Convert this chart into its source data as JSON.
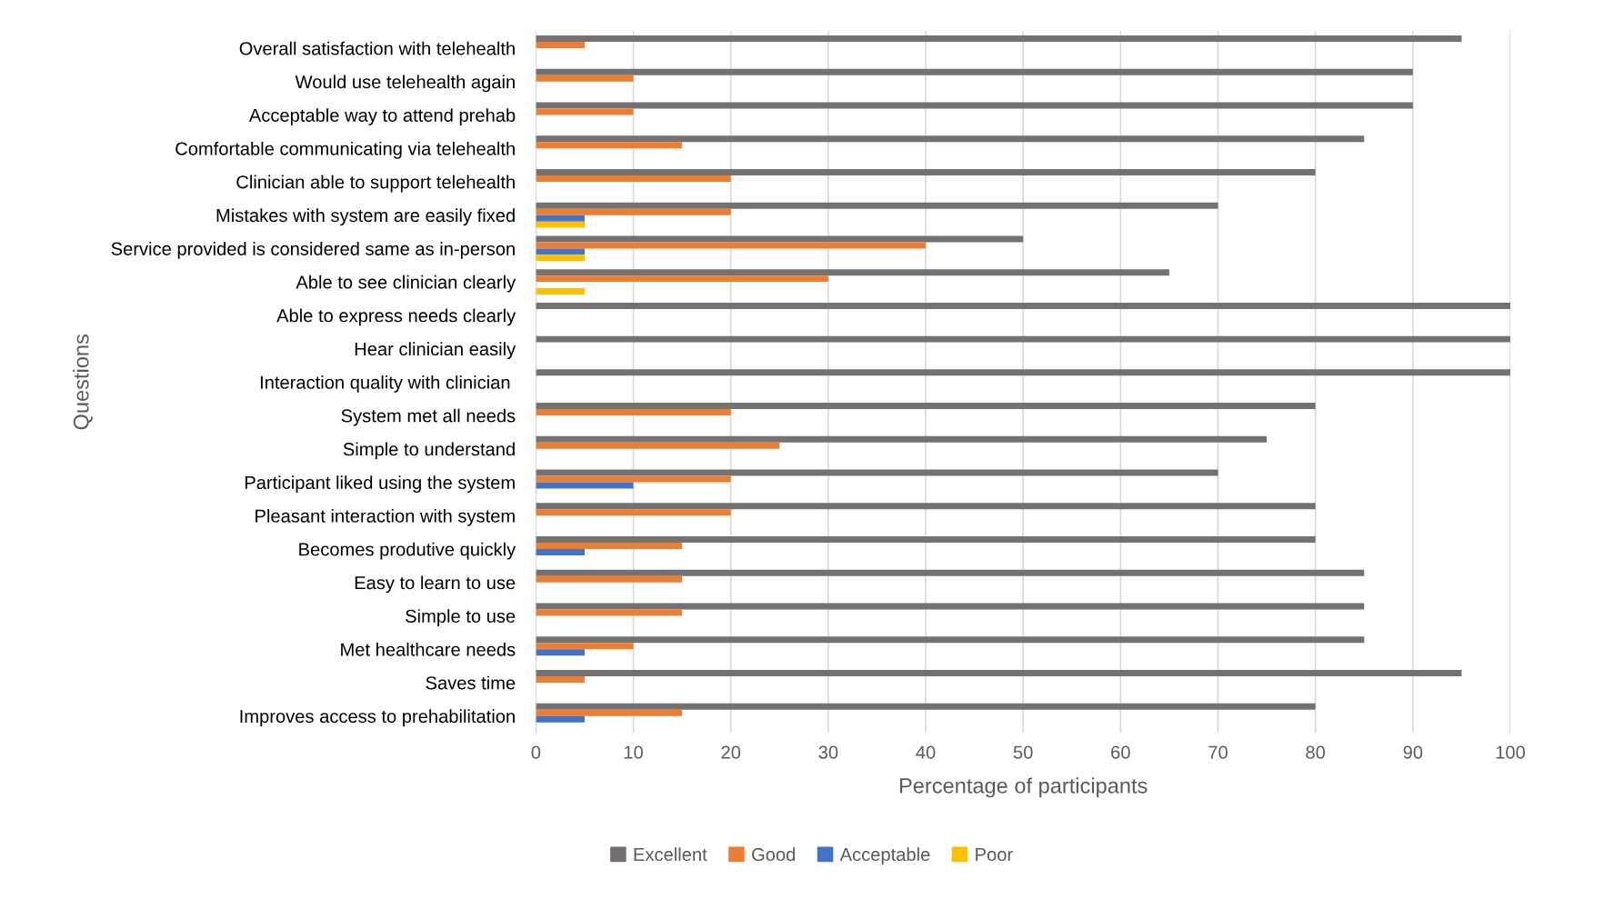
{
  "chart_data": {
    "type": "bar",
    "orientation": "horizontal",
    "xlabel": "Percentage of participants",
    "ylabel": "Questions",
    "categories": [
      "Overall satisfaction with telehealth",
      "Would use telehealth again",
      "Acceptable way to attend prehab",
      "Comfortable communicating via telehealth",
      "Clinician able to support telehealth",
      "Mistakes with system are easily fixed",
      "Service provided is considered same as in-person",
      "Able to see clinician clearly",
      "Able to express needs clearly",
      "Hear clinician easily",
      "Interaction quality with clinician ",
      "System met all needs",
      "Simple to understand",
      "Participant liked using the system",
      "Pleasant interaction with system",
      "Becomes produtive quickly",
      "Easy to learn to use",
      "Simple to use",
      "Met healthcare needs",
      "Saves time",
      "Improves access to prehabilitation"
    ],
    "series": [
      {
        "name": "Excellent",
        "color": "#767171",
        "values": [
          95,
          90,
          90,
          85,
          80,
          70,
          50,
          65,
          100,
          100,
          100,
          80,
          75,
          70,
          80,
          80,
          85,
          85,
          85,
          95,
          80
        ]
      },
      {
        "name": "Good",
        "color": "#ed7d31",
        "values": [
          5,
          10,
          10,
          15,
          20,
          20,
          40,
          30,
          0,
          0,
          0,
          20,
          25,
          20,
          20,
          15,
          15,
          15,
          10,
          5,
          15
        ]
      },
      {
        "name": "Acceptable",
        "color": "#4472c4",
        "values": [
          0,
          0,
          0,
          0,
          0,
          5,
          5,
          0,
          0,
          0,
          0,
          0,
          0,
          10,
          0,
          5,
          0,
          0,
          5,
          0,
          5
        ]
      },
      {
        "name": "Poor",
        "color": "#ffc000",
        "values": [
          0,
          0,
          0,
          0,
          0,
          5,
          5,
          5,
          0,
          0,
          0,
          0,
          0,
          0,
          0,
          0,
          0,
          0,
          0,
          0,
          0
        ]
      }
    ],
    "xlim": [
      0,
      100
    ],
    "xticks": [
      0,
      10,
      20,
      30,
      40,
      50,
      60,
      70,
      80,
      90,
      100
    ],
    "grid": "x",
    "legend": "bottom"
  }
}
